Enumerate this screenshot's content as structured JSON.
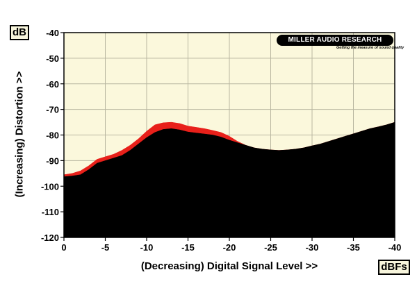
{
  "chart_data": {
    "type": "area",
    "xlabel": "(Decreasing) Digital Signal Level >>",
    "ylabel": "(Increasing) Distortion >>",
    "x_unit": "dBFs",
    "y_unit": "dB",
    "xlim": [
      0,
      -40
    ],
    "ylim": [
      -120,
      -40
    ],
    "x_ticks": [
      0,
      -5,
      -10,
      -15,
      -20,
      -25,
      -30,
      -35,
      -40
    ],
    "x_tick_labels": [
      "0",
      "-5",
      "-10",
      "-15",
      "-20",
      "-25",
      "-30",
      "-35",
      "-40"
    ],
    "y_ticks": [
      -40,
      -50,
      -60,
      -70,
      -80,
      -90,
      -100,
      -110,
      -120
    ],
    "y_tick_labels": [
      "-40",
      "-50",
      "-60",
      "-70",
      "-80",
      "-90",
      "-100",
      "-110",
      "-120"
    ],
    "grid": true,
    "series": [
      {
        "color": "#e8201a",
        "x": [
          0,
          -1,
          -2,
          -3,
          -4,
          -5,
          -6,
          -7,
          -8,
          -9,
          -10,
          -11,
          -12,
          -13,
          -14,
          -15,
          -16,
          -17,
          -18,
          -19,
          -20,
          -21,
          -22,
          -23,
          -24,
          -25,
          -26,
          -27,
          -28,
          -29,
          -30,
          -31,
          -32,
          -33,
          -34,
          -35,
          -36,
          -37,
          -38,
          -39,
          -40
        ],
        "y": [
          -95.5,
          -95,
          -94,
          -92,
          -89.5,
          -88.5,
          -87.5,
          -86,
          -84,
          -81.5,
          -78.5,
          -76,
          -75.2,
          -75,
          -75.5,
          -76.5,
          -77,
          -77.5,
          -78.2,
          -79,
          -80.5,
          -82.5,
          -84,
          -85,
          -85.5,
          -85.8,
          -86,
          -85.8,
          -85.5,
          -85,
          -84.2,
          -83.5,
          -82.5,
          -81.5,
          -80.5,
          -79.5,
          -78.5,
          -77.5,
          -76.8,
          -76,
          -75
        ]
      },
      {
        "color": "#000000",
        "x": [
          0,
          -1,
          -2,
          -3,
          -4,
          -5,
          -6,
          -7,
          -8,
          -9,
          -10,
          -11,
          -12,
          -13,
          -14,
          -15,
          -16,
          -17,
          -18,
          -19,
          -20,
          -21,
          -22,
          -23,
          -24,
          -25,
          -26,
          -27,
          -28,
          -29,
          -30,
          -31,
          -32,
          -33,
          -34,
          -35,
          -36,
          -37,
          -38,
          -39,
          -40
        ],
        "y": [
          -96.3,
          -96,
          -95.5,
          -93.5,
          -91,
          -90,
          -89,
          -88,
          -86,
          -83.5,
          -81,
          -79,
          -77.8,
          -77.5,
          -78,
          -78.8,
          -79.2,
          -79.6,
          -80,
          -80.8,
          -82,
          -83,
          -84,
          -85,
          -85.5,
          -85.8,
          -86,
          -85.8,
          -85.5,
          -85,
          -84.2,
          -83.5,
          -82.5,
          -81.5,
          -80.5,
          -79.5,
          -78.5,
          -77.5,
          -76.8,
          -76,
          -75
        ]
      }
    ]
  },
  "logo": {
    "name": "MILLER AUDIO RESEARCH",
    "tagline": "Getting the measure of sound quality"
  }
}
